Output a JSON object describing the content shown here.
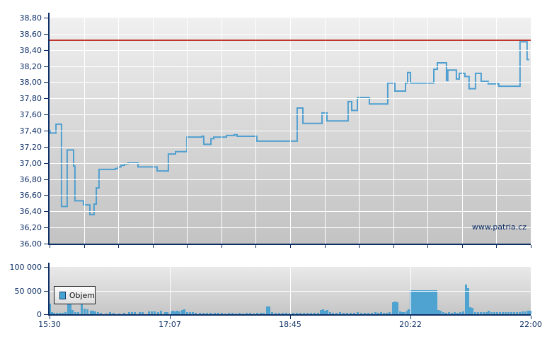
{
  "watermark": "www.patria.cz",
  "colors": {
    "axis": "#0e2f66",
    "labels": "#0e2f66",
    "grid": "#ffffff",
    "price_line": "#4f9fd0",
    "reference_line": "#c0362c",
    "volume_bar": "#4fa3d1"
  },
  "chart_data": [
    {
      "type": "line",
      "role": "intraday-price",
      "x_axis": {
        "tick_labels": [
          "15:30",
          "17:07",
          "18:45",
          "20:22",
          "22:00"
        ],
        "range_minutes": [
          0,
          390
        ],
        "minor_divisions": 14,
        "grid": true
      },
      "y_axis": {
        "tick_labels": [
          "38,80",
          "38,60",
          "38,40",
          "38,20",
          "38,00",
          "37,80",
          "37,60",
          "37,40",
          "37,20",
          "37,00",
          "36,80",
          "36,60",
          "36,40",
          "36,20",
          "36,00"
        ],
        "min": 36.0,
        "max": 38.8,
        "step": 0.2,
        "grid": true
      },
      "reference_line_value": 38.52,
      "series": [
        {
          "name": "price",
          "step": true,
          "points": [
            [
              0,
              37.4
            ],
            [
              0.6,
              37.37
            ],
            [
              5.2,
              37.48
            ],
            [
              9.7,
              36.46
            ],
            [
              14.3,
              37.16
            ],
            [
              19.5,
              36.96
            ],
            [
              20.6,
              36.53
            ],
            [
              27.5,
              36.48
            ],
            [
              32.7,
              36.36
            ],
            [
              36.1,
              36.49
            ],
            [
              37.9,
              36.69
            ],
            [
              40.1,
              36.92
            ],
            [
              53.3,
              36.93
            ],
            [
              55.6,
              36.95
            ],
            [
              57.9,
              36.97
            ],
            [
              60.8,
              36.99
            ],
            [
              63.7,
              37.0
            ],
            [
              71.7,
              36.95
            ],
            [
              87.2,
              36.9
            ],
            [
              96.3,
              37.11
            ],
            [
              102.1,
              37.14
            ],
            [
              111.3,
              37.32
            ],
            [
              123.3,
              37.33
            ],
            [
              125.0,
              37.23
            ],
            [
              130.8,
              37.3
            ],
            [
              133.1,
              37.32
            ],
            [
              143.4,
              37.34
            ],
            [
              149.7,
              37.35
            ],
            [
              152.0,
              37.33
            ],
            [
              168.0,
              37.27
            ],
            [
              200.7,
              37.68
            ],
            [
              205.3,
              37.49
            ],
            [
              220.8,
              37.62
            ],
            [
              224.8,
              37.52
            ],
            [
              242.0,
              37.76
            ],
            [
              244.9,
              37.65
            ],
            [
              249.5,
              37.81
            ],
            [
              259.2,
              37.73
            ],
            [
              274.1,
              37.99
            ],
            [
              279.9,
              37.89
            ],
            [
              288.5,
              37.99
            ],
            [
              290.2,
              38.12
            ],
            [
              292.5,
              37.99
            ],
            [
              311.4,
              38.16
            ],
            [
              314.3,
              38.24
            ],
            [
              321.7,
              38.02
            ],
            [
              322.8,
              38.15
            ],
            [
              329.7,
              38.04
            ],
            [
              332.0,
              38.11
            ],
            [
              336.6,
              38.07
            ],
            [
              340.0,
              37.92
            ],
            [
              345.2,
              38.11
            ],
            [
              349.8,
              38.01
            ],
            [
              355.5,
              37.98
            ],
            [
              364.1,
              37.95
            ],
            [
              381.3,
              38.5
            ],
            [
              387.0,
              38.28
            ],
            [
              388.8,
              38.28
            ]
          ]
        }
      ]
    },
    {
      "type": "bar",
      "role": "volume",
      "legend": {
        "label": "Objem"
      },
      "x_axis": {
        "tick_labels": [
          "15:30",
          "17:07",
          "18:45",
          "20:22",
          "22:00"
        ],
        "range_minutes": [
          0,
          390
        ],
        "grid": true
      },
      "y_axis": {
        "tick_labels": [
          "100 000",
          "50 000",
          "0"
        ],
        "min": 0,
        "max": 100000,
        "step": 50000,
        "grid": true
      },
      "bars": [
        [
          0,
          22000
        ],
        [
          2,
          4000
        ],
        [
          3.4,
          3000
        ],
        [
          5.7,
          3000
        ],
        [
          8,
          2500
        ],
        [
          10.3,
          3000
        ],
        [
          12.6,
          4000
        ],
        [
          14.9,
          27000
        ],
        [
          16.6,
          26000
        ],
        [
          18.4,
          9000
        ],
        [
          20.6,
          5000
        ],
        [
          22.9,
          4000
        ],
        [
          25.8,
          25000
        ],
        [
          28.1,
          12000
        ],
        [
          30.4,
          10000
        ],
        [
          33.3,
          8000
        ],
        [
          35,
          7000
        ],
        [
          36.7,
          6000
        ],
        [
          39,
          5000
        ],
        [
          41.3,
          3000
        ],
        [
          45.9,
          2000
        ],
        [
          48.7,
          4000
        ],
        [
          51.6,
          3500
        ],
        [
          56.2,
          2000
        ],
        [
          60.2,
          2500
        ],
        [
          64.2,
          5000
        ],
        [
          66.5,
          5000
        ],
        [
          68.8,
          4500
        ],
        [
          72.8,
          5000
        ],
        [
          75.1,
          4000
        ],
        [
          80.3,
          6000
        ],
        [
          82.6,
          6500
        ],
        [
          84.9,
          5500
        ],
        [
          87.7,
          5000
        ],
        [
          90,
          7000
        ],
        [
          93.5,
          4000
        ],
        [
          95.2,
          4500
        ],
        [
          98.1,
          6000
        ],
        [
          99.8,
          7000
        ],
        [
          101.5,
          6500
        ],
        [
          103.2,
          7500
        ],
        [
          104.9,
          6000
        ],
        [
          107.2,
          9000
        ],
        [
          109,
          10000
        ],
        [
          111.3,
          5000
        ],
        [
          113.6,
          4500
        ],
        [
          115.8,
          4000
        ],
        [
          118.1,
          3500
        ],
        [
          121.6,
          3000
        ],
        [
          124.4,
          2500
        ],
        [
          127.3,
          3000
        ],
        [
          130.2,
          2500
        ],
        [
          133.6,
          3000
        ],
        [
          136.5,
          2500
        ],
        [
          139.4,
          3000
        ],
        [
          142.2,
          2000
        ],
        [
          145.1,
          2500
        ],
        [
          148,
          3000
        ],
        [
          150.8,
          2000
        ],
        [
          153.7,
          2500
        ],
        [
          156.6,
          2000
        ],
        [
          159.4,
          3000
        ],
        [
          162.3,
          2500
        ],
        [
          165.2,
          2000
        ],
        [
          168,
          2500
        ],
        [
          170.9,
          3000
        ],
        [
          173.2,
          3500
        ],
        [
          176.1,
          16000
        ],
        [
          177.8,
          17000
        ],
        [
          180.1,
          4000
        ],
        [
          183,
          3000
        ],
        [
          185.8,
          3500
        ],
        [
          188.7,
          3000
        ],
        [
          191.6,
          2500
        ],
        [
          194.4,
          3000
        ],
        [
          197.3,
          2500
        ],
        [
          200.2,
          3000
        ],
        [
          203,
          3500
        ],
        [
          205.9,
          3000
        ],
        [
          208.8,
          2500
        ],
        [
          211.6,
          3000
        ],
        [
          214.5,
          2500
        ],
        [
          217.4,
          3000
        ],
        [
          219.7,
          9000
        ],
        [
          221.4,
          10000
        ],
        [
          223.1,
          8000
        ],
        [
          224.8,
          9000
        ],
        [
          227.1,
          4000
        ],
        [
          229.4,
          3500
        ],
        [
          232.3,
          3000
        ],
        [
          235.1,
          4000
        ],
        [
          238,
          3500
        ],
        [
          240.9,
          3000
        ],
        [
          243.7,
          3500
        ],
        [
          246.6,
          3000
        ],
        [
          249.5,
          4000
        ],
        [
          252.3,
          3500
        ],
        [
          255.2,
          3000
        ],
        [
          258.1,
          3500
        ],
        [
          260.9,
          3000
        ],
        [
          263.8,
          4000
        ],
        [
          266.1,
          3500
        ],
        [
          268.4,
          4000
        ],
        [
          270.7,
          3000
        ],
        [
          273,
          3500
        ],
        [
          275.3,
          4000
        ],
        [
          278.1,
          26000
        ],
        [
          279.9,
          27000
        ],
        [
          281.6,
          25000
        ],
        [
          283.9,
          6000
        ],
        [
          285.6,
          5000
        ],
        [
          287.3,
          4000
        ],
        [
          289.6,
          8000
        ],
        [
          290.8,
          10000
        ],
        [
          292.5,
          50000
        ],
        [
          294.2,
          50000
        ],
        [
          295.9,
          51000
        ],
        [
          297.6,
          50000
        ],
        [
          299.4,
          50000
        ],
        [
          301.1,
          51000
        ],
        [
          302.8,
          50000
        ],
        [
          304.5,
          50000
        ],
        [
          306.3,
          51000
        ],
        [
          308,
          50000
        ],
        [
          309.7,
          50000
        ],
        [
          311.4,
          51000
        ],
        [
          313.1,
          50000
        ],
        [
          314.9,
          9000
        ],
        [
          316.6,
          8000
        ],
        [
          318.9,
          4000
        ],
        [
          321.2,
          3500
        ],
        [
          323.5,
          4000
        ],
        [
          325.7,
          3500
        ],
        [
          328,
          4000
        ],
        [
          330.3,
          3500
        ],
        [
          332.6,
          4000
        ],
        [
          334.9,
          6000
        ],
        [
          337.2,
          62000
        ],
        [
          338.9,
          55000
        ],
        [
          340.7,
          15000
        ],
        [
          342.4,
          14000
        ],
        [
          344.7,
          5000
        ],
        [
          347,
          4500
        ],
        [
          349.3,
          4000
        ],
        [
          351.5,
          4500
        ],
        [
          353.8,
          4000
        ],
        [
          355.5,
          8000
        ],
        [
          357.8,
          4000
        ],
        [
          360.1,
          4500
        ],
        [
          362.4,
          4000
        ],
        [
          364.7,
          4500
        ],
        [
          367,
          4000
        ],
        [
          369.3,
          4500
        ],
        [
          371.6,
          5000
        ],
        [
          373.9,
          4500
        ],
        [
          376.2,
          5000
        ],
        [
          378.5,
          4500
        ],
        [
          380.7,
          5000
        ],
        [
          383,
          5500
        ],
        [
          385.3,
          6000
        ],
        [
          387.6,
          7000
        ],
        [
          389.3,
          8000
        ]
      ]
    }
  ]
}
